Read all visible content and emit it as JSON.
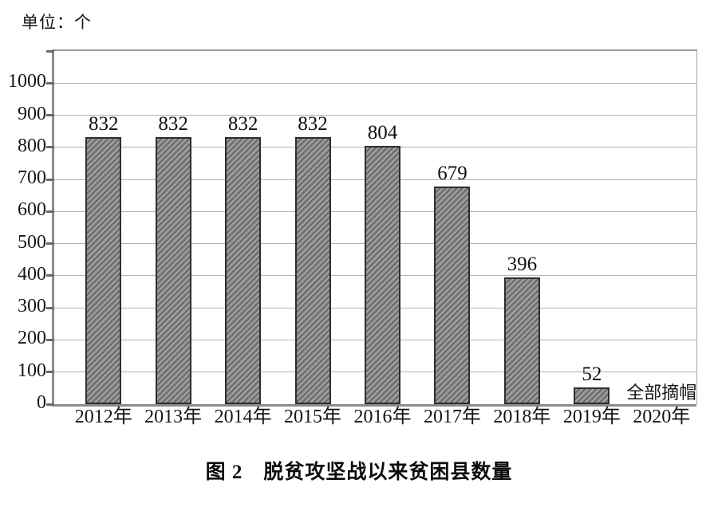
{
  "figure": {
    "unit_label": "单位：个",
    "caption": "图 2　脱贫攻坚战以来贫困县数量"
  },
  "chart_data": {
    "type": "bar",
    "title": "图 2　脱贫攻坚战以来贫困县数量",
    "unit_label": "单位：个",
    "categories": [
      "2012年",
      "2013年",
      "2014年",
      "2015年",
      "2016年",
      "2017年",
      "2018年",
      "2019年",
      "2020年"
    ],
    "values": [
      832,
      832,
      832,
      832,
      804,
      679,
      396,
      52,
      null
    ],
    "data_labels": [
      "832",
      "832",
      "832",
      "832",
      "804",
      "679",
      "396",
      "52",
      ""
    ],
    "annotation": {
      "text": "全部摘帽",
      "category_index": 8
    },
    "xlabel": "",
    "ylabel": "",
    "ylim": [
      0,
      1100
    ],
    "ytick_values": [
      0,
      100,
      200,
      300,
      400,
      500,
      600,
      700,
      800,
      900,
      1000
    ],
    "ytick_labels": [
      "0",
      "100",
      "200",
      "300",
      "400",
      "500",
      "600",
      "700",
      "800",
      "900",
      "1000"
    ],
    "grid": true,
    "legend": "none",
    "colors": {
      "bar_fill": "#9e9e9e",
      "bar_hatch": "#6e6e6e",
      "bar_border": "#2e2e2e",
      "gridline": "#b3b3b3",
      "axis": "#8c8c8c",
      "text": "#111111"
    }
  }
}
